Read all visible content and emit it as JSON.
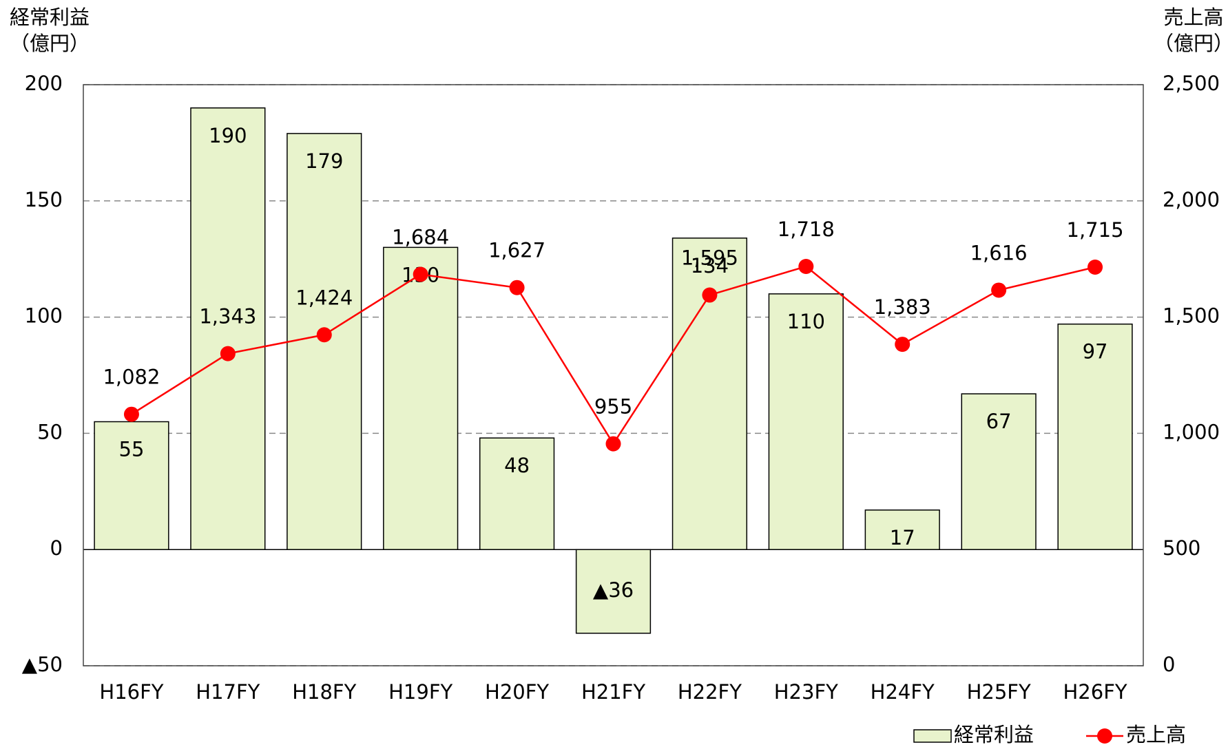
{
  "chart_data": {
    "type": "bar_line",
    "ylabel": [
      "経常利益",
      "（億円）"
    ],
    "y2label": [
      "売上高",
      "（億円）"
    ],
    "categories": [
      "H16FY",
      "H17FY",
      "H18FY",
      "H19FY",
      "H20FY",
      "H21FY",
      "H22FY",
      "H23FY",
      "H24FY",
      "H25FY",
      "H26FY"
    ],
    "series": [
      {
        "name": "経常利益",
        "type": "bar",
        "color": "#e8f3cc",
        "values": [
          55,
          190,
          179,
          130,
          48,
          -36,
          134,
          110,
          17,
          67,
          97
        ],
        "value_labels": [
          "55",
          "190",
          "179",
          "130",
          "48",
          "▲36",
          "134",
          "110",
          "17",
          "67",
          "97"
        ]
      },
      {
        "name": "売上高",
        "type": "line",
        "axis": "y2",
        "color": "#ff0000",
        "values": [
          1082,
          1343,
          1424,
          1684,
          1627,
          955,
          1595,
          1718,
          1383,
          1616,
          1715
        ],
        "value_labels": [
          "1,082",
          "1,343",
          "1,424",
          "1,684",
          "1,627",
          "955",
          "1,595",
          "1,718",
          "1,383",
          "1,616",
          "1,715"
        ]
      }
    ],
    "ylim": [
      -50,
      200
    ],
    "yticks": [
      {
        "value": -50,
        "label": "▲50"
      },
      0,
      50,
      100,
      150,
      200
    ],
    "y2lim": [
      0,
      2500
    ],
    "y2ticks": [
      0,
      500,
      {
        "value": 1000,
        "label": "1,000"
      },
      {
        "value": 1500,
        "label": "1,500"
      },
      {
        "value": 2000,
        "label": "2,000"
      },
      {
        "value": 2500,
        "label": "2,500"
      }
    ],
    "grid": true,
    "legend": "bottom-right"
  }
}
